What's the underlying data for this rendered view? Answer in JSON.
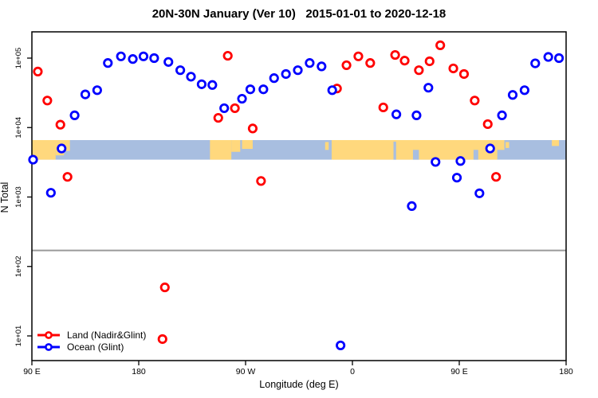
{
  "chart_data": {
    "type": "scatter",
    "title": "20N-30N January (Ver 10)   2015-01-01 to 2020-12-18",
    "xlabel": "Longitude (deg E)",
    "ylabel": "N Total",
    "x_axis": {
      "range_deg": [
        90,
        540
      ],
      "ticks": [
        {
          "lon": 90,
          "label": "90 E"
        },
        {
          "lon": 180,
          "label": "180"
        },
        {
          "lon": 270,
          "label": "90 W"
        },
        {
          "lon": 360,
          "label": "0"
        },
        {
          "lon": 450,
          "label": "90 E"
        },
        {
          "lon": 540,
          "label": "180"
        }
      ]
    },
    "y_axis": {
      "scale": "log10",
      "ticks": [
        {
          "value": 100000,
          "label": "1e+05"
        },
        {
          "value": 10000,
          "label": "1e+04"
        },
        {
          "value": 1000,
          "label": "1e+03"
        },
        {
          "value": 100,
          "label": "1e+02"
        },
        {
          "value": 10,
          "label": "1e+01"
        }
      ]
    },
    "grid": false,
    "legend_position": "bottom-left",
    "threshold_line": {
      "value": 170,
      "color": "#9a9a9a"
    },
    "map_band": {
      "value_top": 6600,
      "value_bottom": 3450,
      "ocean_color": "#a8bee0",
      "land_color": "#ffd87d",
      "land_segments": [
        {
          "lon1": 90,
          "lon2": 122,
          "f1": 0,
          "f2": 0.55
        },
        {
          "lon1": 90,
          "lon2": 110,
          "f1": 0.5,
          "f2": 1
        },
        {
          "lon1": 110,
          "lon2": 117,
          "f1": 0.5,
          "f2": 0.78
        },
        {
          "lon1": 240,
          "lon2": 258,
          "f1": 0,
          "f2": 1
        },
        {
          "lon1": 258,
          "lon2": 265.5,
          "f1": 0,
          "f2": 0.6
        },
        {
          "lon1": 267,
          "lon2": 276,
          "f1": 0,
          "f2": 0.45
        },
        {
          "lon1": 337,
          "lon2": 340,
          "f1": 0.1,
          "f2": 0.5
        },
        {
          "lon1": 342.5,
          "lon2": 482,
          "f1": 0,
          "f2": 1
        },
        {
          "lon1": 482,
          "lon2": 488,
          "f1": 0,
          "f2": 0.5
        },
        {
          "lon1": 489,
          "lon2": 492,
          "f1": 0.1,
          "f2": 0.4
        },
        {
          "lon1": 528,
          "lon2": 534,
          "f1": 0,
          "f2": 0.3
        }
      ],
      "ocean_notches": [
        {
          "lon1": 394.6,
          "lon2": 396.8,
          "f1": 0.08,
          "f2": 1
        },
        {
          "lon1": 411,
          "lon2": 416,
          "f1": 0.5,
          "f2": 1
        },
        {
          "lon1": 462,
          "lon2": 466,
          "f1": 0.5,
          "f2": 1
        }
      ]
    },
    "series": [
      {
        "name": "Land (Nadir&Glint)",
        "color": "#ff0000",
        "points": [
          {
            "lon": 95,
            "n": 64000
          },
          {
            "lon": 103,
            "n": 24500
          },
          {
            "lon": 114,
            "n": 11000
          },
          {
            "lon": 120,
            "n": 1950
          },
          {
            "lon": 200,
            "n": 9
          },
          {
            "lon": 202,
            "n": 50
          },
          {
            "lon": 247,
            "n": 13800
          },
          {
            "lon": 255,
            "n": 108000
          },
          {
            "lon": 261,
            "n": 19000
          },
          {
            "lon": 276,
            "n": 9700
          },
          {
            "lon": 283,
            "n": 1700
          },
          {
            "lon": 347,
            "n": 36500
          },
          {
            "lon": 355,
            "n": 79000
          },
          {
            "lon": 365,
            "n": 106000
          },
          {
            "lon": 375,
            "n": 85000
          },
          {
            "lon": 386,
            "n": 19500
          },
          {
            "lon": 396,
            "n": 111000
          },
          {
            "lon": 404,
            "n": 92000
          },
          {
            "lon": 416,
            "n": 67000
          },
          {
            "lon": 425,
            "n": 90000
          },
          {
            "lon": 434,
            "n": 153000
          },
          {
            "lon": 445,
            "n": 71000
          },
          {
            "lon": 454,
            "n": 59000
          },
          {
            "lon": 463,
            "n": 24500
          },
          {
            "lon": 474,
            "n": 11200
          },
          {
            "lon": 481,
            "n": 1950
          }
        ]
      },
      {
        "name": "Ocean (Glint)",
        "color": "#0000ff",
        "points": [
          {
            "lon": 91,
            "n": 3450
          },
          {
            "lon": 106,
            "n": 1150
          },
          {
            "lon": 115,
            "n": 5000
          },
          {
            "lon": 126,
            "n": 15000
          },
          {
            "lon": 135,
            "n": 30000
          },
          {
            "lon": 145,
            "n": 34500
          },
          {
            "lon": 154,
            "n": 85000
          },
          {
            "lon": 165,
            "n": 106000
          },
          {
            "lon": 175,
            "n": 97000
          },
          {
            "lon": 184,
            "n": 106000
          },
          {
            "lon": 193,
            "n": 100000
          },
          {
            "lon": 205,
            "n": 88000
          },
          {
            "lon": 215,
            "n": 67000
          },
          {
            "lon": 224,
            "n": 54000
          },
          {
            "lon": 233,
            "n": 42000
          },
          {
            "lon": 242,
            "n": 41000
          },
          {
            "lon": 252,
            "n": 19000
          },
          {
            "lon": 267,
            "n": 26000
          },
          {
            "lon": 274,
            "n": 35500
          },
          {
            "lon": 285,
            "n": 35500
          },
          {
            "lon": 294,
            "n": 51500
          },
          {
            "lon": 304,
            "n": 59000
          },
          {
            "lon": 314,
            "n": 67000
          },
          {
            "lon": 324,
            "n": 85000
          },
          {
            "lon": 334,
            "n": 76000
          },
          {
            "lon": 343,
            "n": 34500
          },
          {
            "lon": 350,
            "n": 7.3
          },
          {
            "lon": 397,
            "n": 15500
          },
          {
            "lon": 410,
            "n": 740
          },
          {
            "lon": 414,
            "n": 15000
          },
          {
            "lon": 424,
            "n": 37500
          },
          {
            "lon": 430,
            "n": 3200
          },
          {
            "lon": 448,
            "n": 1900
          },
          {
            "lon": 451,
            "n": 3300
          },
          {
            "lon": 467,
            "n": 1130
          },
          {
            "lon": 476,
            "n": 5000
          },
          {
            "lon": 486,
            "n": 15000
          },
          {
            "lon": 495,
            "n": 29500
          },
          {
            "lon": 505,
            "n": 34500
          },
          {
            "lon": 514,
            "n": 84000
          },
          {
            "lon": 525,
            "n": 104000
          },
          {
            "lon": 534,
            "n": 100000
          }
        ]
      }
    ]
  },
  "legend": {
    "items": [
      {
        "label": "Land (Nadir&Glint)",
        "color": "#ff0000"
      },
      {
        "label": "Ocean (Glint)",
        "color": "#0000ff"
      }
    ]
  }
}
